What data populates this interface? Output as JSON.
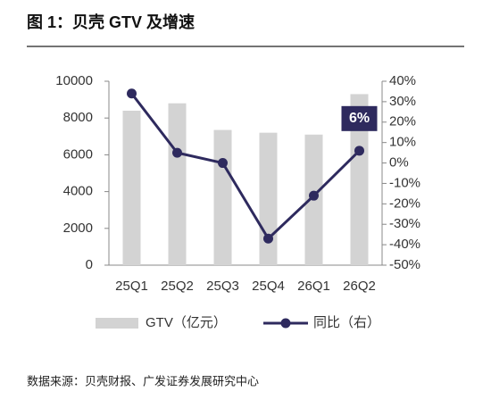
{
  "chart_data": {
    "type": "combo",
    "title": "图 1：贝壳 GTV 及增速",
    "categories": [
      "25Q1",
      "25Q2",
      "25Q3",
      "25Q4",
      "26Q1",
      "26Q2"
    ],
    "series": [
      {
        "name": "GTV（亿元）",
        "type": "bar",
        "color": "#d3d3d3",
        "values": [
          8400,
          8800,
          7350,
          7200,
          7100,
          9300
        ]
      },
      {
        "name": "同比（右）",
        "type": "line",
        "axis": "y2",
        "color": "#2e2a5e",
        "values": [
          34,
          5,
          0,
          -37,
          -16,
          6
        ],
        "value_labels": [
          null,
          null,
          null,
          null,
          null,
          "6%"
        ]
      }
    ],
    "ylim": [
      0,
      10000
    ],
    "yticks": [
      0,
      2000,
      4000,
      6000,
      8000,
      10000
    ],
    "y2lim": [
      -50,
      40
    ],
    "y2ticks": [
      {
        "value": -50,
        "label": "-50%"
      },
      {
        "value": -40,
        "label": "-40%"
      },
      {
        "value": -30,
        "label": "-30%"
      },
      {
        "value": -20,
        "label": "-20%"
      },
      {
        "value": -10,
        "label": "-10%"
      },
      {
        "value": 0,
        "label": "0%"
      },
      {
        "value": 10,
        "label": "10%"
      },
      {
        "value": 20,
        "label": "20%"
      },
      {
        "value": 30,
        "label": "30%"
      },
      {
        "value": 40,
        "label": "40%"
      }
    ],
    "source": "数据来源：贝壳财报、广发证券发展研究中心"
  }
}
